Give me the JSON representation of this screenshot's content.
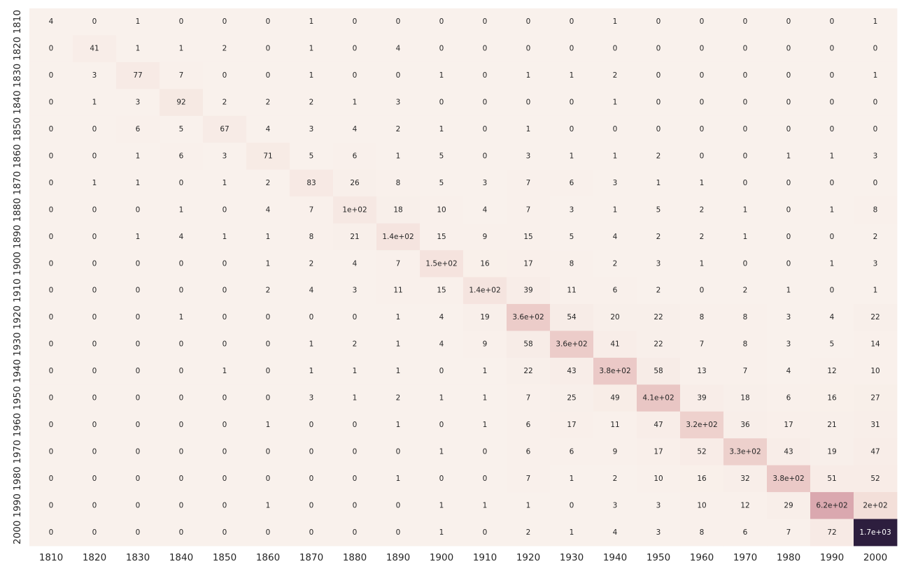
{
  "chart_data": {
    "type": "heatmap",
    "title": "",
    "xlabel": "",
    "ylabel": "",
    "x_categories": [
      "1810",
      "1820",
      "1830",
      "1840",
      "1850",
      "1860",
      "1870",
      "1880",
      "1890",
      "1900",
      "1910",
      "1920",
      "1930",
      "1940",
      "1950",
      "1960",
      "1970",
      "1980",
      "1990",
      "2000"
    ],
    "y_categories": [
      "1810",
      "1820",
      "1830",
      "1840",
      "1850",
      "1860",
      "1870",
      "1880",
      "1890",
      "1900",
      "1910",
      "1920",
      "1930",
      "1940",
      "1950",
      "1960",
      "1970",
      "1980",
      "1990",
      "2000"
    ],
    "values": [
      [
        4,
        0,
        1,
        0,
        0,
        0,
        1,
        0,
        0,
        0,
        0,
        0,
        0,
        1,
        0,
        0,
        0,
        0,
        0,
        1
      ],
      [
        0,
        41,
        1,
        1,
        2,
        0,
        1,
        0,
        4,
        0,
        0,
        0,
        0,
        0,
        0,
        0,
        0,
        0,
        0,
        0
      ],
      [
        0,
        3,
        77,
        7,
        0,
        0,
        1,
        0,
        0,
        1,
        0,
        1,
        1,
        2,
        0,
        0,
        0,
        0,
        0,
        1
      ],
      [
        0,
        1,
        3,
        92,
        2,
        2,
        2,
        1,
        3,
        0,
        0,
        0,
        0,
        1,
        0,
        0,
        0,
        0,
        0,
        0
      ],
      [
        0,
        0,
        6,
        5,
        67,
        4,
        3,
        4,
        2,
        1,
        0,
        1,
        0,
        0,
        0,
        0,
        0,
        0,
        0,
        0
      ],
      [
        0,
        0,
        1,
        6,
        3,
        71,
        5,
        6,
        1,
        5,
        0,
        3,
        1,
        1,
        2,
        0,
        0,
        1,
        1,
        3
      ],
      [
        0,
        1,
        1,
        0,
        1,
        2,
        83,
        26,
        8,
        5,
        3,
        7,
        6,
        3,
        1,
        1,
        0,
        0,
        0,
        0
      ],
      [
        0,
        0,
        0,
        1,
        0,
        4,
        7,
        100,
        18,
        10,
        4,
        7,
        3,
        1,
        5,
        2,
        1,
        0,
        1,
        8
      ],
      [
        0,
        0,
        1,
        4,
        1,
        1,
        8,
        21,
        140,
        15,
        9,
        15,
        5,
        4,
        2,
        2,
        1,
        0,
        0,
        2
      ],
      [
        0,
        0,
        0,
        0,
        0,
        1,
        2,
        4,
        7,
        150,
        16,
        17,
        8,
        2,
        3,
        1,
        0,
        0,
        1,
        3
      ],
      [
        0,
        0,
        0,
        0,
        0,
        2,
        4,
        3,
        11,
        15,
        140,
        39,
        11,
        6,
        2,
        0,
        2,
        1,
        0,
        1
      ],
      [
        0,
        0,
        0,
        1,
        0,
        0,
        0,
        0,
        1,
        4,
        19,
        360,
        54,
        20,
        22,
        8,
        8,
        3,
        4,
        22
      ],
      [
        0,
        0,
        0,
        0,
        0,
        0,
        1,
        2,
        1,
        4,
        9,
        58,
        360,
        41,
        22,
        7,
        8,
        3,
        5,
        14
      ],
      [
        0,
        0,
        0,
        0,
        1,
        0,
        1,
        1,
        1,
        0,
        1,
        22,
        43,
        380,
        58,
        13,
        7,
        4,
        12,
        10
      ],
      [
        0,
        0,
        0,
        0,
        0,
        0,
        3,
        1,
        2,
        1,
        1,
        7,
        25,
        49,
        410,
        39,
        18,
        6,
        16,
        27
      ],
      [
        0,
        0,
        0,
        0,
        0,
        1,
        0,
        0,
        1,
        0,
        1,
        6,
        17,
        11,
        47,
        320,
        36,
        17,
        21,
        31
      ],
      [
        0,
        0,
        0,
        0,
        0,
        0,
        0,
        0,
        0,
        1,
        0,
        6,
        6,
        9,
        17,
        52,
        330,
        43,
        19,
        47
      ],
      [
        0,
        0,
        0,
        0,
        0,
        0,
        0,
        0,
        1,
        0,
        0,
        7,
        1,
        2,
        10,
        16,
        32,
        380,
        51,
        52
      ],
      [
        0,
        0,
        0,
        0,
        0,
        1,
        0,
        0,
        0,
        1,
        1,
        1,
        0,
        3,
        3,
        10,
        12,
        29,
        620,
        200
      ],
      [
        0,
        0,
        0,
        0,
        0,
        0,
        0,
        0,
        0,
        1,
        0,
        2,
        1,
        4,
        3,
        8,
        6,
        7,
        72,
        1700
      ]
    ],
    "annotations": [
      [
        "4",
        "0",
        "1",
        "0",
        "0",
        "0",
        "1",
        "0",
        "0",
        "0",
        "0",
        "0",
        "0",
        "1",
        "0",
        "0",
        "0",
        "0",
        "0",
        "1"
      ],
      [
        "0",
        "41",
        "1",
        "1",
        "2",
        "0",
        "1",
        "0",
        "4",
        "0",
        "0",
        "0",
        "0",
        "0",
        "0",
        "0",
        "0",
        "0",
        "0",
        "0"
      ],
      [
        "0",
        "3",
        "77",
        "7",
        "0",
        "0",
        "1",
        "0",
        "0",
        "1",
        "0",
        "1",
        "1",
        "2",
        "0",
        "0",
        "0",
        "0",
        "0",
        "1"
      ],
      [
        "0",
        "1",
        "3",
        "92",
        "2",
        "2",
        "2",
        "1",
        "3",
        "0",
        "0",
        "0",
        "0",
        "1",
        "0",
        "0",
        "0",
        "0",
        "0",
        "0"
      ],
      [
        "0",
        "0",
        "6",
        "5",
        "67",
        "4",
        "3",
        "4",
        "2",
        "1",
        "0",
        "1",
        "0",
        "0",
        "0",
        "0",
        "0",
        "0",
        "0",
        "0"
      ],
      [
        "0",
        "0",
        "1",
        "6",
        "3",
        "71",
        "5",
        "6",
        "1",
        "5",
        "0",
        "3",
        "1",
        "1",
        "2",
        "0",
        "0",
        "1",
        "1",
        "3"
      ],
      [
        "0",
        "1",
        "1",
        "0",
        "1",
        "2",
        "83",
        "26",
        "8",
        "5",
        "3",
        "7",
        "6",
        "3",
        "1",
        "1",
        "0",
        "0",
        "0",
        "0"
      ],
      [
        "0",
        "0",
        "0",
        "1",
        "0",
        "4",
        "7",
        "1e+02",
        "18",
        "10",
        "4",
        "7",
        "3",
        "1",
        "5",
        "2",
        "1",
        "0",
        "1",
        "8"
      ],
      [
        "0",
        "0",
        "1",
        "4",
        "1",
        "1",
        "8",
        "21",
        "1.4e+02",
        "15",
        "9",
        "15",
        "5",
        "4",
        "2",
        "2",
        "1",
        "0",
        "0",
        "2"
      ],
      [
        "0",
        "0",
        "0",
        "0",
        "0",
        "1",
        "2",
        "4",
        "7",
        "1.5e+02",
        "16",
        "17",
        "8",
        "2",
        "3",
        "1",
        "0",
        "0",
        "1",
        "3"
      ],
      [
        "0",
        "0",
        "0",
        "0",
        "0",
        "2",
        "4",
        "3",
        "11",
        "15",
        "1.4e+02",
        "39",
        "11",
        "6",
        "2",
        "0",
        "2",
        "1",
        "0",
        "1"
      ],
      [
        "0",
        "0",
        "0",
        "1",
        "0",
        "0",
        "0",
        "0",
        "1",
        "4",
        "19",
        "3.6e+02",
        "54",
        "20",
        "22",
        "8",
        "8",
        "3",
        "4",
        "22"
      ],
      [
        "0",
        "0",
        "0",
        "0",
        "0",
        "0",
        "1",
        "2",
        "1",
        "4",
        "9",
        "58",
        "3.6e+02",
        "41",
        "22",
        "7",
        "8",
        "3",
        "5",
        "14"
      ],
      [
        "0",
        "0",
        "0",
        "0",
        "1",
        "0",
        "1",
        "1",
        "1",
        "0",
        "1",
        "22",
        "43",
        "3.8e+02",
        "58",
        "13",
        "7",
        "4",
        "12",
        "10"
      ],
      [
        "0",
        "0",
        "0",
        "0",
        "0",
        "0",
        "3",
        "1",
        "2",
        "1",
        "1",
        "7",
        "25",
        "49",
        "4.1e+02",
        "39",
        "18",
        "6",
        "16",
        "27"
      ],
      [
        "0",
        "0",
        "0",
        "0",
        "0",
        "1",
        "0",
        "0",
        "1",
        "0",
        "1",
        "6",
        "17",
        "11",
        "47",
        "3.2e+02",
        "36",
        "17",
        "21",
        "31"
      ],
      [
        "0",
        "0",
        "0",
        "0",
        "0",
        "0",
        "0",
        "0",
        "0",
        "1",
        "0",
        "6",
        "6",
        "9",
        "17",
        "52",
        "3.3e+02",
        "43",
        "19",
        "47"
      ],
      [
        "0",
        "0",
        "0",
        "0",
        "0",
        "0",
        "0",
        "0",
        "1",
        "0",
        "0",
        "7",
        "1",
        "2",
        "10",
        "16",
        "32",
        "3.8e+02",
        "51",
        "52"
      ],
      [
        "0",
        "0",
        "0",
        "0",
        "0",
        "1",
        "0",
        "0",
        "0",
        "1",
        "1",
        "1",
        "0",
        "3",
        "3",
        "10",
        "12",
        "29",
        "6.2e+02",
        "2e+02"
      ],
      [
        "0",
        "0",
        "0",
        "0",
        "0",
        "0",
        "0",
        "0",
        "0",
        "1",
        "0",
        "2",
        "1",
        "4",
        "3",
        "8",
        "6",
        "7",
        "72",
        "1.7e+03"
      ]
    ],
    "value_range": [
      0,
      1700
    ],
    "colormap": [
      "#f9f1ec",
      "#f2dbd5",
      "#e5bcbc",
      "#d197a5",
      "#b6778e",
      "#875574",
      "#5d3b5d",
      "#2d1e3e"
    ],
    "grid": false,
    "legend": "none"
  }
}
